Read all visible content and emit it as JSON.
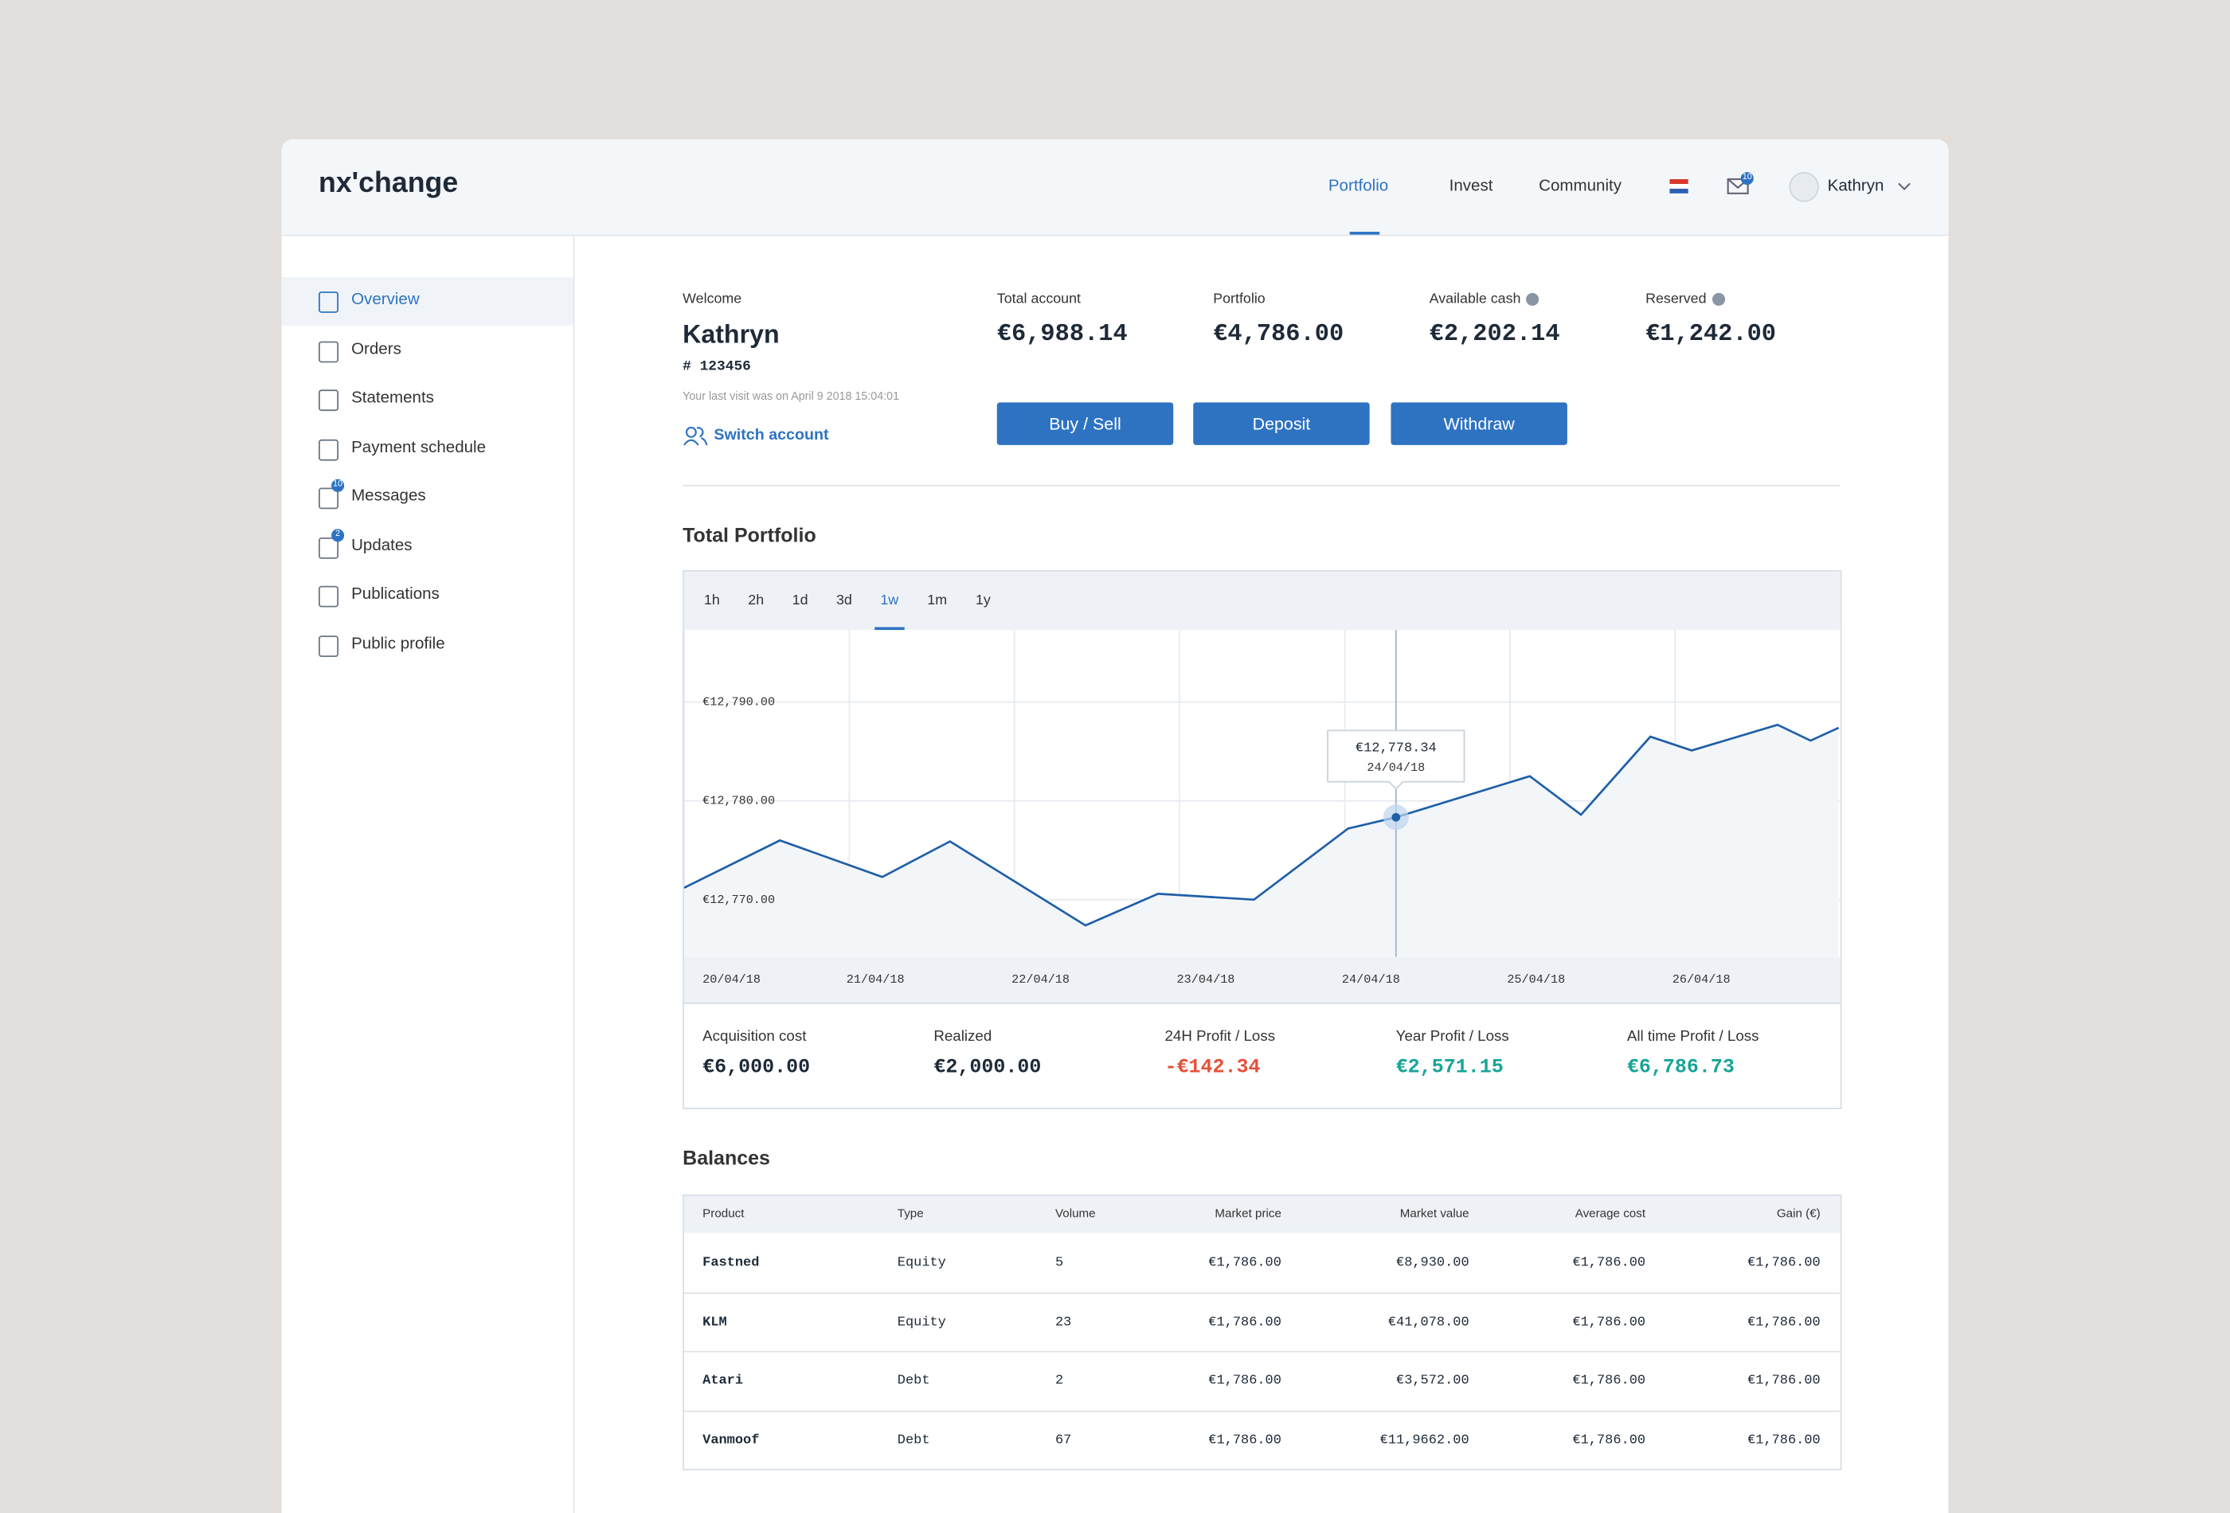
{
  "header": {
    "logo": "nx'change",
    "nav": [
      "Portfolio",
      "Invest",
      "Community"
    ],
    "mail_badge": "10",
    "user": "Kathryn"
  },
  "sidebar": [
    {
      "label": "Overview"
    },
    {
      "label": "Orders"
    },
    {
      "label": "Statements"
    },
    {
      "label": "Payment schedule"
    },
    {
      "label": "Messages",
      "badge": "10"
    },
    {
      "label": "Updates",
      "badge": "2"
    },
    {
      "label": "Publications"
    },
    {
      "label": "Public profile"
    }
  ],
  "account": {
    "welcome": "Welcome",
    "name": "Kathryn",
    "id": "# 123456",
    "last_visit": "Your last visit was on April 9 2018 15:04:01",
    "switch": "Switch account"
  },
  "stats": [
    {
      "label": "Total account",
      "value": "€6,988.14"
    },
    {
      "label": "Portfolio",
      "value": "€4,786.00"
    },
    {
      "label": "Available cash",
      "value": "€2,202.14"
    },
    {
      "label": "Reserved",
      "value": "€1,242.00"
    }
  ],
  "buttons": [
    "Buy / Sell",
    "Deposit",
    "Withdraw"
  ],
  "ranges": [
    "1h",
    "2h",
    "1d",
    "3d",
    "1w",
    "1m",
    "1y"
  ],
  "chart_data": {
    "type": "line",
    "title": "Total Portfolio",
    "color": "#1f5fa8",
    "grid": true,
    "x": [
      0,
      0.58,
      1.2,
      1.61,
      2.43,
      2.87,
      3.45,
      4.02,
      4.31,
      5.12,
      5.43,
      5.85,
      6.1,
      6.62,
      6.82,
      6.99
    ],
    "values": [
      12771.2,
      12776.0,
      12772.3,
      12775.9,
      12767.4,
      12770.6,
      12770.0,
      12777.2,
      12778.34,
      12782.5,
      12778.6,
      12786.5,
      12785.1,
      12787.7,
      12786.1,
      12787.4
    ],
    "value_labels": [
      null,
      null,
      null,
      null,
      null,
      null,
      null,
      null,
      "€12,778.34",
      null,
      null,
      null,
      null,
      null,
      null,
      null
    ],
    "xlim": [
      0,
      7
    ],
    "ylim": [
      12764.2,
      12797.3
    ],
    "xticks": [
      {
        "value": 0,
        "label": "20/04/18"
      },
      {
        "value": 1,
        "label": "21/04/18"
      },
      {
        "value": 2,
        "label": "22/04/18"
      },
      {
        "value": 3,
        "label": "23/04/18"
      },
      {
        "value": 4,
        "label": "24/04/18"
      },
      {
        "value": 5,
        "label": "25/04/18"
      },
      {
        "value": 6,
        "label": "26/04/18"
      }
    ],
    "yticks": [
      {
        "value": 12770,
        "label": "€12,770.00"
      },
      {
        "value": 12780,
        "label": "€12,780.00"
      },
      {
        "value": 12790,
        "label": "€12,790.00"
      }
    ]
  },
  "summary": [
    {
      "label": "Acquisition cost",
      "value": "€6,000.00"
    },
    {
      "label": "Realized",
      "value": "€2,000.00"
    },
    {
      "label": "24H Profit / Loss",
      "value": "-€142.34"
    },
    {
      "label": "Year Profit / Loss",
      "value": "€2,571.15"
    },
    {
      "label": "All time Profit / Loss",
      "value": "€6,786.73"
    }
  ],
  "balances": {
    "title": "Balances",
    "columns": [
      "Product",
      "Type",
      "Volume",
      "Market price",
      "Market value",
      "Average cost",
      "Gain (€)"
    ],
    "rows": [
      [
        "Fastned",
        "Equity",
        "5",
        "€1,786.00",
        "€8,930.00",
        "€1,786.00",
        "€1,786.00"
      ],
      [
        "KLM",
        "Equity",
        "23",
        "€1,786.00",
        "€41,078.00",
        "€1,786.00",
        "€1,786.00"
      ],
      [
        "Atari",
        "Debt",
        "2",
        "€1,786.00",
        "€3,572.00",
        "€1,786.00",
        "€1,786.00"
      ],
      [
        "Vanmoof",
        "Debt",
        "67",
        "€1,786.00",
        "€11,9662.00",
        "€1,786.00",
        "€1,786.00"
      ]
    ]
  }
}
